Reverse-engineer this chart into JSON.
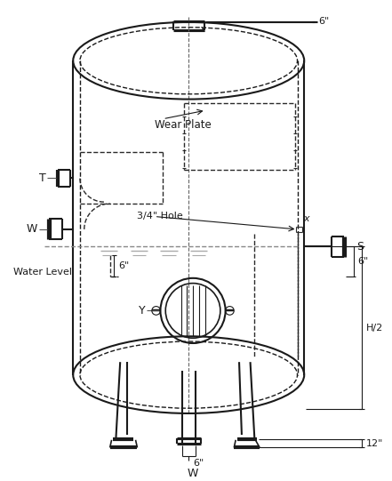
{
  "bg_color": "#ffffff",
  "lc": "#1a1a1a",
  "dc": "#2a2a2a",
  "figsize": [
    4.41,
    5.41
  ],
  "dpi": 100,
  "labels": {
    "T": "T",
    "W_left": "W",
    "W_bottom": "W",
    "Y": "Y",
    "S": "S",
    "x_top": "x",
    "x_side": "x",
    "water_level": "Water Level",
    "wear_plate": "Wear Plate",
    "hole": "3/4\" Hole",
    "dim_6_top": "6\"",
    "dim_6_inlet": "6\"",
    "dim_6_side": "6\"",
    "dim_6_bottom": "6\"",
    "dim_H2": "H/2",
    "dim_12": "12\""
  }
}
